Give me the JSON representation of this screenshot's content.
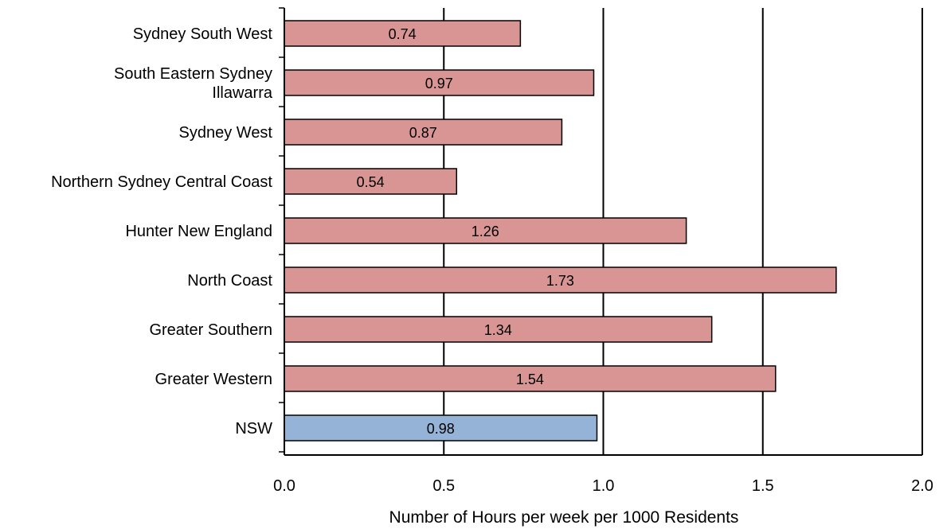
{
  "chart_data": {
    "type": "bar",
    "orientation": "horizontal",
    "categories": [
      [
        "Sydney South West"
      ],
      [
        "South Eastern Sydney",
        "Illawarra"
      ],
      [
        "Sydney West"
      ],
      [
        "Northern Sydney Central Coast"
      ],
      [
        "Hunter New England"
      ],
      [
        "North Coast"
      ],
      [
        "Greater Southern"
      ],
      [
        "Greater Western"
      ],
      [
        "NSW"
      ]
    ],
    "values": [
      0.74,
      0.97,
      0.87,
      0.54,
      1.26,
      1.73,
      1.34,
      1.54,
      0.98
    ],
    "value_labels": [
      "0.74",
      "0.97",
      "0.87",
      "0.54",
      "1.26",
      "1.73",
      "1.34",
      "1.54",
      "0.98"
    ],
    "bar_colors": [
      "#d99594",
      "#d99594",
      "#d99594",
      "#d99594",
      "#d99594",
      "#d99594",
      "#d99594",
      "#d99594",
      "#95b3d7"
    ],
    "xlabel": "Number of Hours per week per 1000 Residents",
    "ylabel": "",
    "title": "",
    "xlim": [
      0.0,
      2.0
    ],
    "x_ticks": [
      0.0,
      0.5,
      1.0,
      1.5,
      2.0
    ],
    "x_tick_labels": [
      "0.0",
      "0.5",
      "1.0",
      "1.5",
      "2.0"
    ],
    "grid": "vertical major gridlines",
    "legend": "none"
  }
}
